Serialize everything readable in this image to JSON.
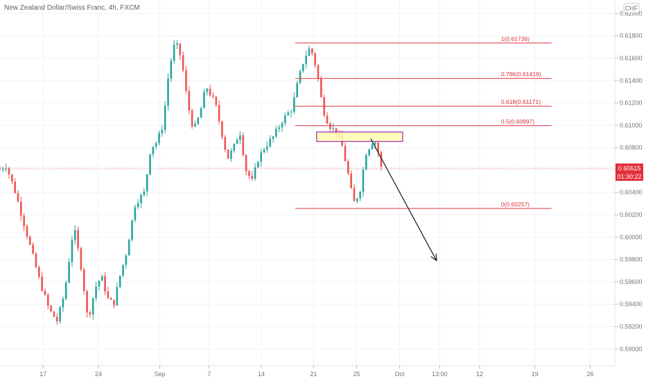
{
  "chart_data": {
    "type": "candlestick",
    "title": "New Zealand Dollar/Swiss Franc, 4h, FXCM",
    "currency_badge": "CHF",
    "ylim": [
      0.5885,
      0.6212
    ],
    "yticks": [
      "0.62000",
      "0.61800",
      "0.61600",
      "0.61400",
      "0.61200",
      "0.61000",
      "0.60800",
      "0.60600",
      "0.60400",
      "0.60200",
      "0.60000",
      "0.59800",
      "0.59600",
      "0.59400",
      "0.59200",
      "0.59000"
    ],
    "xticks": [
      "17",
      "24",
      "Sep",
      "7",
      "14",
      "21",
      "25",
      "Oct",
      "13:00",
      "12",
      "19",
      "26"
    ],
    "xlim": [
      0,
      100
    ],
    "xtick_positions": [
      7.0,
      16.0,
      26.0,
      34.0,
      42.5,
      51.0,
      58.0,
      65.0,
      71.5,
      78.0,
      87.0,
      96.0
    ],
    "close_price": "0.60615",
    "countdown": "01:30:22",
    "fib_levels": [
      {
        "label": "1(0.61736)",
        "value": 0.61736
      },
      {
        "label": "0.786(0.61419)",
        "value": 0.61419
      },
      {
        "label": "0.618(0.61171)",
        "value": 0.61171
      },
      {
        "label": "0.5(0.60997)",
        "value": 0.60997
      },
      {
        "label": "0(0.60257)",
        "value": 0.60257
      }
    ],
    "fib_x_range": [
      48.0,
      89.7
    ],
    "zone": {
      "x1": 51.5,
      "x2": 65.5,
      "y_low": 0.60855,
      "y_high": 0.6094
    },
    "arrow": {
      "x1": 60.3,
      "y1": 0.6088,
      "x2": 71.0,
      "y2": 0.5979
    },
    "waypoints": [
      [
        0.0,
        0.6061
      ],
      [
        1.0,
        0.6064
      ],
      [
        2.5,
        0.604
      ],
      [
        4.5,
        0.6
      ],
      [
        6.5,
        0.596
      ],
      [
        8.0,
        0.5935
      ],
      [
        9.3,
        0.5925
      ],
      [
        10.5,
        0.595
      ],
      [
        12.0,
        0.601
      ],
      [
        13.3,
        0.597
      ],
      [
        14.3,
        0.5925
      ],
      [
        15.5,
        0.5955
      ],
      [
        16.5,
        0.5965
      ],
      [
        17.5,
        0.5945
      ],
      [
        18.5,
        0.594
      ],
      [
        19.5,
        0.5965
      ],
      [
        20.5,
        0.5985
      ],
      [
        22.0,
        0.603
      ],
      [
        23.5,
        0.604
      ],
      [
        24.5,
        0.608
      ],
      [
        25.5,
        0.6085
      ],
      [
        26.5,
        0.61
      ],
      [
        27.5,
        0.615
      ],
      [
        28.5,
        0.6175
      ],
      [
        29.5,
        0.616
      ],
      [
        30.5,
        0.612
      ],
      [
        31.5,
        0.6095
      ],
      [
        32.5,
        0.611
      ],
      [
        33.5,
        0.6135
      ],
      [
        35.0,
        0.612
      ],
      [
        36.0,
        0.6095
      ],
      [
        37.0,
        0.607
      ],
      [
        38.0,
        0.608
      ],
      [
        39.0,
        0.6095
      ],
      [
        40.0,
        0.606
      ],
      [
        41.0,
        0.605
      ],
      [
        42.0,
        0.607
      ],
      [
        43.0,
        0.608
      ],
      [
        44.5,
        0.609
      ],
      [
        46.0,
        0.6105
      ],
      [
        47.5,
        0.6115
      ],
      [
        48.5,
        0.614
      ],
      [
        49.5,
        0.616
      ],
      [
        50.5,
        0.617
      ],
      [
        51.5,
        0.615
      ],
      [
        52.5,
        0.6115
      ],
      [
        53.5,
        0.61
      ],
      [
        54.5,
        0.6095
      ],
      [
        55.5,
        0.6085
      ],
      [
        56.5,
        0.606
      ],
      [
        57.5,
        0.603
      ],
      [
        58.5,
        0.604
      ],
      [
        59.5,
        0.6075
      ],
      [
        60.5,
        0.6085
      ],
      [
        61.2,
        0.6085
      ],
      [
        62.0,
        0.6062
      ]
    ]
  }
}
